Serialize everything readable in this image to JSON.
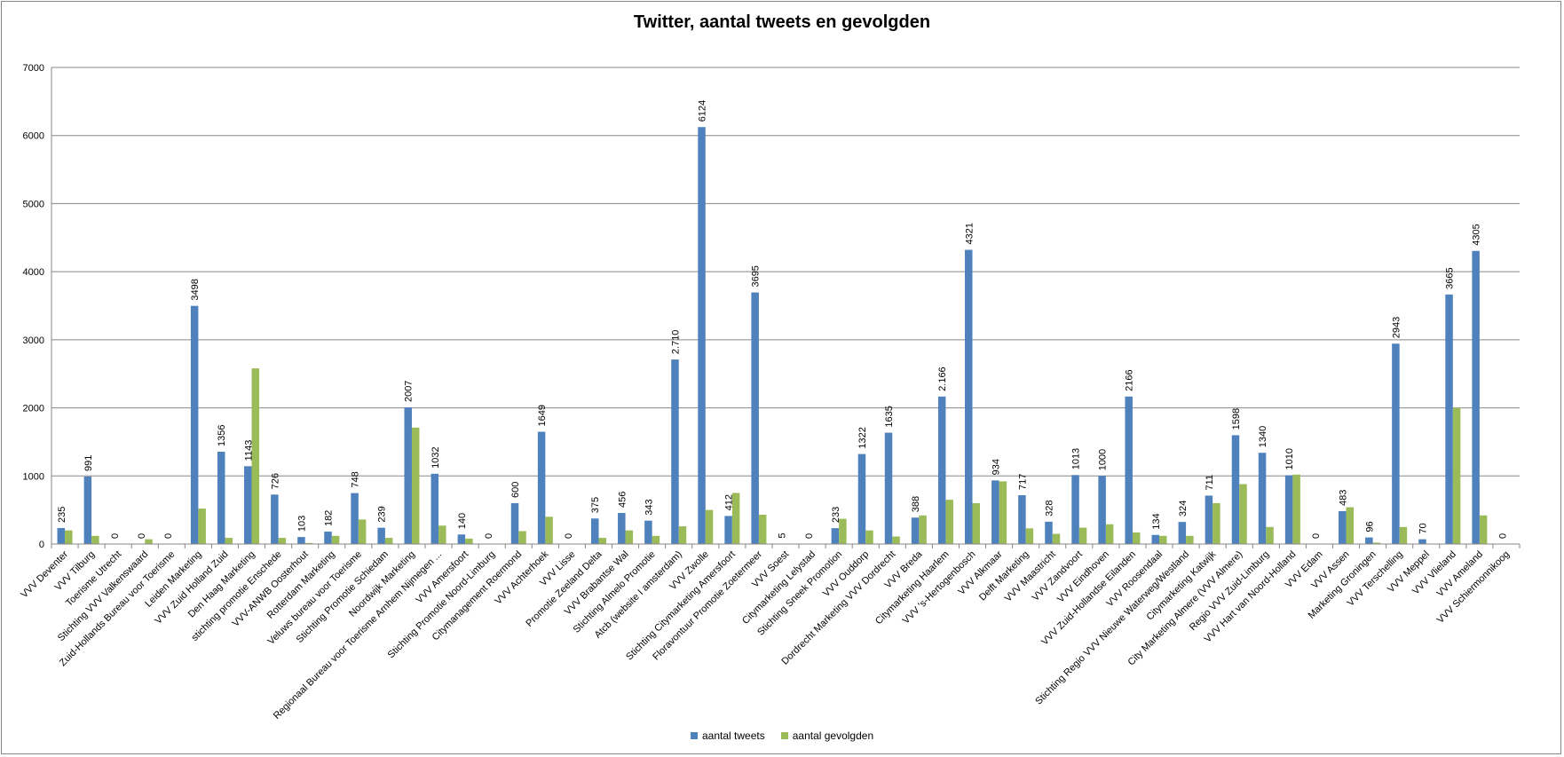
{
  "chart_data": {
    "type": "bar",
    "title": "Twitter, aantal tweets en gevolgden",
    "xlabel": "",
    "ylabel": "",
    "ylim": [
      0,
      7000
    ],
    "yticks": [
      "0",
      "1000",
      "2000",
      "3000",
      "4000",
      "5000",
      "6000",
      "7000"
    ],
    "grid": true,
    "legend_position": "bottom",
    "categories": [
      "VVV Deventer",
      "VVV Tilburg",
      "Toerisme Utrecht",
      "Stichting VVV Valkenswaard",
      "Zuid-Hollands Bureau voor Toerisme",
      "Leiden Marketing",
      "VVV Zuid Holland Zuid",
      "Den Haag Marketing",
      "stichting promotie Enschede",
      "VVV-ANWB Oosterhout",
      "Rotterdam Marketing",
      "Veluws bureau voor Toerisme",
      "Stichting Promotie Schiedam",
      "Noordwijk Marketing",
      "Regionaal Bureau voor Toerisme Arnhem Nijmegen ...",
      "VVV Amersfoort",
      "Stichting Promotie Noord-Limburg",
      "Citymanagement Roermond",
      "VVV Achterhoek",
      "VVV Lisse",
      "Promotie Zeeland Delta",
      "VVV Brabantse Wal",
      "Stichting Almelo Promotie",
      "Atcb (website I amsterdam)",
      "VVV Zwolle",
      "Stichting Citymarketing Amersfoort",
      "Floravontuur Promotie Zoetermeer",
      "VVV Soest",
      "Citymarketing Lelystad",
      "Stichting Sneek Promotion",
      "VVV Ouddorp",
      "Dordrecht Marketing VVV Dordrecht",
      "VVV Breda",
      "Citymarketing Haarlem",
      "VVV 's-Hertogenbosch",
      "VVV Alkmaar",
      "Delft Marketing",
      "VVV Maastricht",
      "VVV Zandvoort",
      "VVV Eindhoven",
      "VVV Zuid-Hollandse Eilanden",
      "VVV Roosendaal",
      "Stichting Regio VVV Nieuwe Waterweg/Westland",
      "Citymarketing Katwijk",
      "City Marketing Almere (VVV Almere)",
      "Regio VVV Zuid-Limburg",
      "VVV Hart van Noord-Holland",
      "VVV Edam",
      "VVV Assen",
      "Marketing Groningen",
      "VVV Terschelling",
      "VVV Meppel",
      "VVV Vlieland",
      "VVV Ameland",
      "VVV Schiermonnikoog"
    ],
    "series": [
      {
        "name": "aantal tweets",
        "color": "#4f81bd",
        "values": [
          235,
          991,
          0,
          0,
          0,
          3498,
          1356,
          1143,
          726,
          103,
          182,
          748,
          239,
          2007,
          1032,
          140,
          0,
          600,
          1649,
          0,
          375,
          456,
          343,
          2710,
          6124,
          412,
          3695,
          5,
          0,
          233,
          1322,
          1635,
          388,
          2166,
          4321,
          934,
          717,
          328,
          1013,
          1000,
          2166,
          134,
          324,
          711,
          1598,
          1340,
          1010,
          0,
          483,
          96,
          2943,
          70,
          3665,
          4305,
          0
        ],
        "labels": [
          "235",
          "991",
          "0",
          "0",
          "0",
          "3498",
          "1356",
          "1143",
          "726",
          "103",
          "182",
          "748",
          "239",
          "2007",
          "1032",
          "140",
          "0",
          "600",
          "1649",
          "0",
          "375",
          "456",
          "343",
          "2.710",
          "6124",
          "412",
          "3695",
          "5",
          "0",
          "233",
          "1322",
          "1635",
          "388",
          "2.166",
          "4321",
          "934",
          "717",
          "328",
          "1013",
          "1000",
          "2166",
          "134",
          "324",
          "711",
          "1598",
          "1340",
          "1010",
          "0",
          "483",
          "96",
          "2943",
          "70",
          "3665",
          "4305",
          "0"
        ]
      },
      {
        "name": "aantal gevolgden",
        "color": "#9bbb59",
        "values": [
          200,
          120,
          0,
          70,
          0,
          520,
          90,
          2580,
          90,
          15,
          120,
          360,
          90,
          1710,
          270,
          80,
          0,
          190,
          400,
          0,
          90,
          200,
          120,
          260,
          500,
          750,
          430,
          0,
          0,
          370,
          200,
          110,
          420,
          650,
          600,
          920,
          230,
          150,
          240,
          290,
          170,
          120,
          120,
          600,
          880,
          250,
          1020,
          0,
          540,
          20,
          250,
          0,
          2000,
          420,
          0
        ]
      }
    ]
  }
}
